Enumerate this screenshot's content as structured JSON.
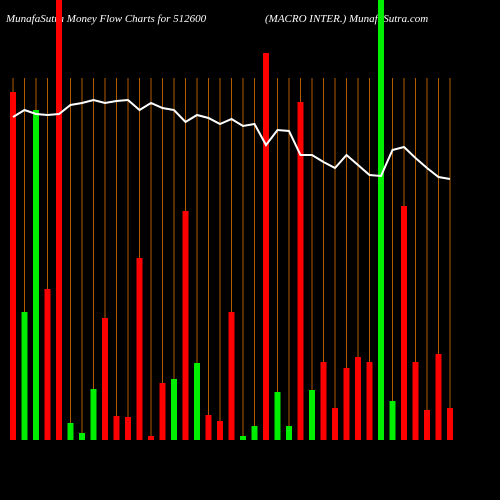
{
  "chart_data": {
    "type": "bar",
    "title": "MunafaSutra  Money Flow  Charts for 512600",
    "subtitle": "(MACRO INTER.) MunafaSutra.com",
    "ylim": [
      0,
      440
    ],
    "series": [
      {
        "colors": [
          "#ff0000",
          "#00ee00",
          "#00ee00",
          "#ff0000",
          "#ff0000",
          "#00ee00",
          "#00ee00",
          "#00ee00",
          "#ff0000",
          "#ff0000",
          "#ff0000",
          "#ff0000",
          "#ff0000",
          "#ff0000",
          "#00ee00",
          "#ff0000",
          "#00ee00",
          "#ff0000",
          "#ff0000",
          "#ff0000",
          "#00ee00",
          "#00ee00",
          "#ff0000",
          "#00ee00",
          "#00ee00",
          "#ff0000",
          "#00ee00",
          "#ff0000",
          "#ff0000",
          "#ff0000",
          "#ff0000",
          "#ff0000",
          "#00ee00",
          "#00ee00",
          "#ff0000",
          "#ff0000",
          "#ff0000",
          "#ff0000",
          "#ff0000"
        ],
        "values": [
          348,
          128,
          330,
          151,
          440,
          17,
          7,
          51,
          122,
          24,
          23,
          182,
          4,
          57,
          61,
          229,
          77,
          25,
          19,
          128,
          4,
          14,
          387,
          48,
          14,
          338,
          50,
          78,
          32,
          72,
          83,
          78,
          440,
          39,
          234,
          78,
          30,
          86,
          32
        ]
      },
      {
        "type": "line",
        "color": "#ffffff",
        "values": [
          323,
          330,
          326,
          325,
          326,
          335,
          337,
          340,
          337,
          339,
          340,
          330,
          337,
          332,
          330,
          318,
          325,
          322,
          316,
          321,
          314,
          316,
          295,
          310,
          309,
          285,
          285,
          278,
          272,
          285,
          275,
          265,
          264,
          290,
          293,
          282,
          272,
          263,
          261
        ]
      }
    ]
  }
}
